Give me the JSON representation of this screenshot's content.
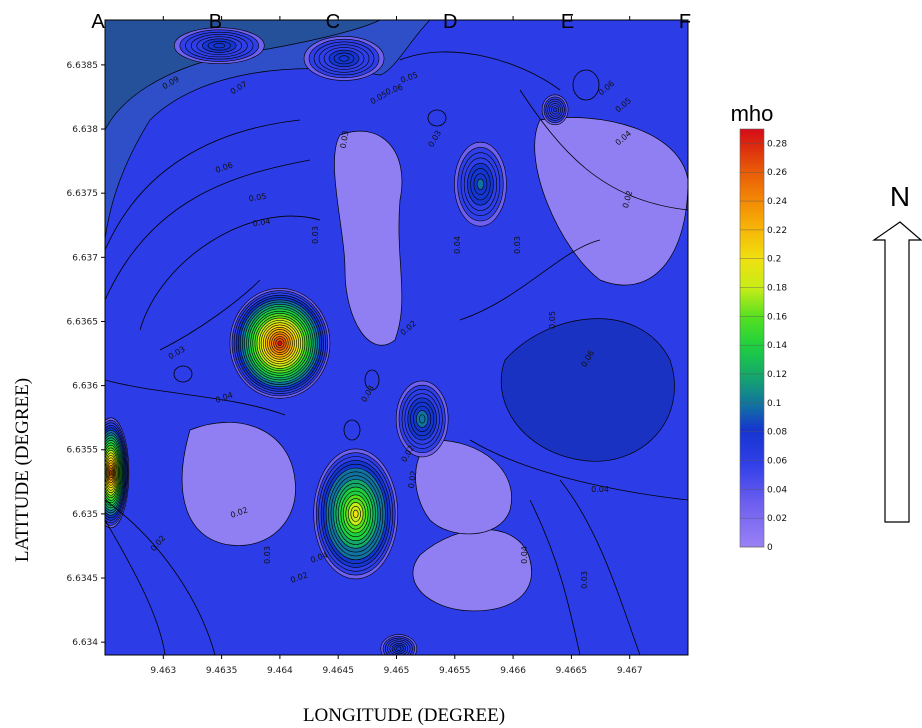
{
  "chart_data": {
    "type": "heatmap",
    "title": "",
    "xlabel": "LONGITUDE (DEGREE)",
    "ylabel": "LATITUDE (DEGREE)",
    "xlim": [
      9.4625,
      9.4675
    ],
    "ylim": [
      6.6339,
      6.63885
    ],
    "x_ticks": [
      "9.463",
      "9.4635",
      "9.464",
      "9.4645",
      "9.465",
      "9.4655",
      "9.466",
      "9.4665",
      "9.467"
    ],
    "y_ticks": [
      "6.6385",
      "6.638",
      "6.6375",
      "6.637",
      "6.6365",
      "6.636",
      "6.6355",
      "6.635",
      "6.6345",
      "6.634"
    ],
    "column_labels": [
      "A",
      "B",
      "C",
      "D",
      "E",
      "F"
    ],
    "colorbar": {
      "unit": "mho",
      "min": 0,
      "max": 0.29,
      "ticks": [
        "0",
        "0.02",
        "0.04",
        "0.06",
        "0.08",
        "0.1",
        "0.12",
        "0.14",
        "0.16",
        "0.18",
        "0.2",
        "0.22",
        "0.24",
        "0.26",
        "0.28"
      ]
    },
    "contour_labels": [
      "0.09",
      "0.07",
      "0.06",
      "0.05",
      "0.04",
      "0.03",
      "0.02",
      "0.03",
      "0.03",
      "0.04",
      "0.05",
      "0.06",
      "0.02",
      "0.03",
      "0.06",
      "0.05",
      "0.04",
      "0.03",
      "0.02",
      "0.02",
      "0.03",
      "0.04",
      "0.03",
      "0.02",
      "0.02",
      "0.04",
      "0.03",
      "0.02",
      "0.04",
      "0.05",
      "0.06",
      "0.05",
      "0.04"
    ],
    "peaks": [
      {
        "lon": 9.464,
        "lat": 6.63633,
        "value": 0.29
      },
      {
        "lon": 9.46465,
        "lat": 6.635,
        "value": 0.2
      },
      {
        "lon": 9.46255,
        "lat": 6.63532,
        "value": 0.26
      },
      {
        "lon": 9.46522,
        "lat": 6.63574,
        "value": 0.11
      },
      {
        "lon": 9.46572,
        "lat": 6.63757,
        "value": 0.1
      },
      {
        "lon": 9.46455,
        "lat": 6.63855,
        "value": 0.09
      },
      {
        "lon": 9.46348,
        "lat": 6.63865,
        "value": 0.09
      },
      {
        "lon": 9.46502,
        "lat": 6.63395,
        "value": 0.09
      },
      {
        "lon": 9.46636,
        "lat": 6.63815,
        "value": 0.08
      }
    ],
    "north_label": "N",
    "legend": "right",
    "grid": false
  }
}
